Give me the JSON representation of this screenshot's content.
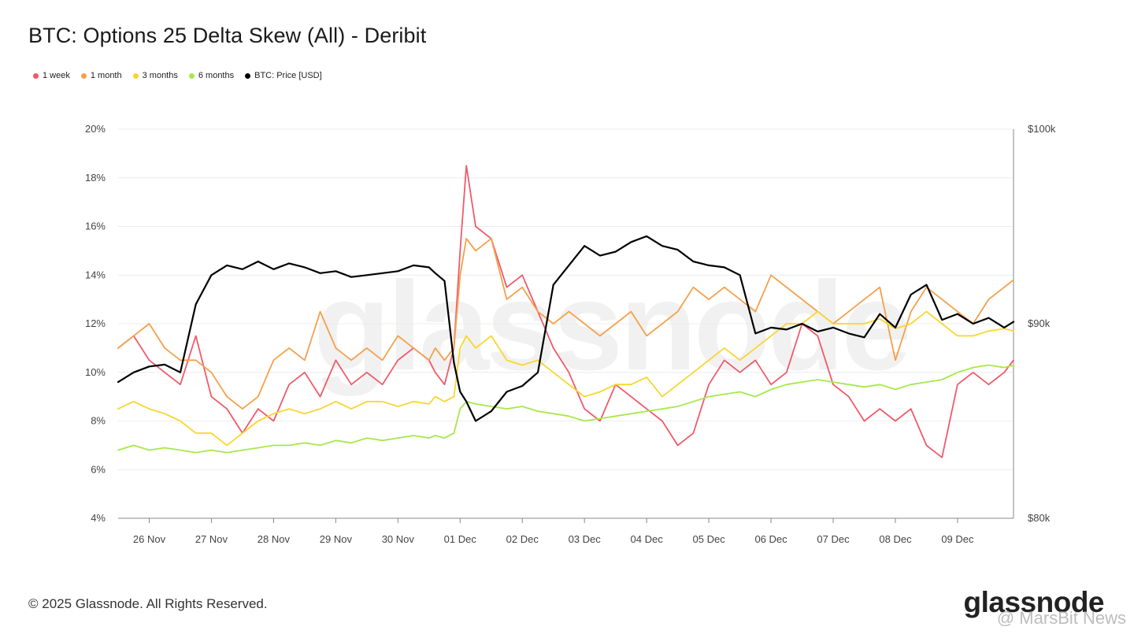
{
  "header": {
    "title": "BTC: Options 25 Delta Skew (All) - Deribit"
  },
  "legend": [
    {
      "label": "1 week",
      "color": "#f05a6a"
    },
    {
      "label": "1 month",
      "color": "#f5a04a"
    },
    {
      "label": "3 months",
      "color": "#f9d62e"
    },
    {
      "label": "6 months",
      "color": "#a6e84a"
    },
    {
      "label": "BTC: Price [USD]",
      "color": "#000000"
    }
  ],
  "footer": {
    "copyright": "© 2025 Glassnode. All Rights Reserved.",
    "brand": "glassnode",
    "watermark": "glassnode",
    "overlay": "@ MarsBit News"
  },
  "chart_data": {
    "type": "line",
    "title": "BTC: Options 25 Delta Skew (All) - Deribit",
    "x_ticks": [
      "26 Nov",
      "27 Nov",
      "28 Nov",
      "29 Nov",
      "30 Nov",
      "01 Dec",
      "02 Dec",
      "03 Dec",
      "04 Dec",
      "05 Dec",
      "06 Dec",
      "07 Dec",
      "08 Dec",
      "09 Dec"
    ],
    "x_range": [
      "25 Nov 12:00",
      "09 Dec 15:00"
    ],
    "y_left": {
      "ticks": [
        "4%",
        "6%",
        "8%",
        "10%",
        "12%",
        "14%",
        "16%",
        "18%",
        "20%"
      ],
      "min": 4,
      "max": 20
    },
    "y_right": {
      "ticks": [
        "$80k",
        "$90k",
        "$100k"
      ],
      "min": 80000,
      "max": 100000
    },
    "grid": true,
    "legend_position": "top-left",
    "x": [
      0,
      0.25,
      0.5,
      0.75,
      1,
      1.25,
      1.5,
      1.75,
      2,
      2.25,
      2.5,
      2.75,
      3,
      3.25,
      3.5,
      3.75,
      4,
      4.25,
      4.5,
      4.75,
      5,
      5.1,
      5.25,
      5.4,
      5.5,
      5.6,
      5.75,
      6,
      6.25,
      6.5,
      6.75,
      7,
      7.25,
      7.5,
      7.75,
      8,
      8.25,
      8.5,
      8.75,
      9,
      9.25,
      9.5,
      9.75,
      10,
      10.25,
      10.5,
      10.75,
      11,
      11.25,
      11.5,
      11.75,
      12,
      12.25,
      12.5,
      12.75,
      13,
      13.25,
      13.5,
      13.75,
      14,
      14.25,
      14.4
    ],
    "series": [
      {
        "name": "1 week",
        "color": "#f05a6a",
        "values": [
          11.0,
          11.5,
          10.5,
          10.0,
          9.5,
          11.5,
          9.0,
          8.5,
          7.5,
          8.5,
          8.0,
          9.5,
          10.0,
          9.0,
          10.5,
          9.5,
          10.0,
          9.5,
          10.5,
          11.0,
          10.5,
          10.0,
          9.5,
          11.0,
          15.0,
          18.5,
          16.0,
          15.5,
          13.5,
          14.0,
          12.5,
          11.0,
          10.0,
          8.5,
          8.0,
          9.5,
          9.0,
          8.5,
          8.0,
          7.0,
          7.5,
          9.5,
          10.5,
          10.0,
          10.5,
          9.5,
          10.0,
          12.0,
          11.5,
          9.5,
          9.0,
          8.0,
          8.5,
          8.0,
          8.5,
          7.0,
          6.5,
          9.5,
          10.0,
          9.5,
          10.0,
          10.5
        ]
      },
      {
        "name": "1 month",
        "color": "#f5a04a",
        "values": [
          11.0,
          11.5,
          12.0,
          11.0,
          10.5,
          10.5,
          10.0,
          9.0,
          8.5,
          9.0,
          10.5,
          11.0,
          10.5,
          12.5,
          11.0,
          10.5,
          11.0,
          10.5,
          11.5,
          11.0,
          10.5,
          11.0,
          10.5,
          11.0,
          14.0,
          15.5,
          15.0,
          15.5,
          13.0,
          13.5,
          12.5,
          12.0,
          12.5,
          12.0,
          11.5,
          12.0,
          12.5,
          11.5,
          12.0,
          12.5,
          13.5,
          13.0,
          13.5,
          13.0,
          12.5,
          14.0,
          13.5,
          13.0,
          12.5,
          12.0,
          12.5,
          13.0,
          13.5,
          10.5,
          12.5,
          13.5,
          13.0,
          12.5,
          12.0,
          13.0,
          13.5,
          13.8
        ]
      },
      {
        "name": "3 months",
        "color": "#f9d62e",
        "values": [
          8.5,
          8.8,
          8.5,
          8.3,
          8.0,
          7.5,
          7.5,
          7.0,
          7.5,
          8.0,
          8.3,
          8.5,
          8.3,
          8.5,
          8.8,
          8.5,
          8.8,
          8.8,
          8.6,
          8.8,
          8.7,
          9.0,
          8.8,
          9.0,
          11.0,
          11.5,
          11.0,
          11.5,
          10.5,
          10.3,
          10.5,
          10.0,
          9.5,
          9.0,
          9.2,
          9.5,
          9.5,
          9.8,
          9.0,
          9.5,
          10.0,
          10.5,
          11.0,
          10.5,
          11.0,
          11.5,
          12.0,
          12.0,
          12.5,
          12.0,
          12.0,
          12.0,
          12.2,
          11.8,
          12.0,
          12.5,
          12.0,
          11.5,
          11.5,
          11.7,
          11.8,
          11.7
        ]
      },
      {
        "name": "6 months",
        "color": "#a6e84a",
        "values": [
          6.8,
          7.0,
          6.8,
          6.9,
          6.8,
          6.7,
          6.8,
          6.7,
          6.8,
          6.9,
          7.0,
          7.0,
          7.1,
          7.0,
          7.2,
          7.1,
          7.3,
          7.2,
          7.3,
          7.4,
          7.3,
          7.4,
          7.3,
          7.5,
          8.5,
          8.8,
          8.7,
          8.6,
          8.5,
          8.6,
          8.4,
          8.3,
          8.2,
          8.0,
          8.1,
          8.2,
          8.3,
          8.4,
          8.5,
          8.6,
          8.8,
          9.0,
          9.1,
          9.2,
          9.0,
          9.3,
          9.5,
          9.6,
          9.7,
          9.6,
          9.5,
          9.4,
          9.5,
          9.3,
          9.5,
          9.6,
          9.7,
          10.0,
          10.2,
          10.3,
          10.2,
          10.3
        ]
      },
      {
        "name": "BTC: Price [USD]",
        "color": "#000000",
        "values": [
          87000,
          87500,
          87800,
          87900,
          87500,
          91000,
          92500,
          93000,
          92800,
          93200,
          92800,
          93100,
          92900,
          92600,
          92700,
          92400,
          92500,
          92600,
          92700,
          93000,
          92900,
          92600,
          92200,
          88000,
          86500,
          86000,
          85000,
          85500,
          86500,
          86800,
          87500,
          92000,
          93000,
          94000,
          93500,
          93700,
          94200,
          94500,
          94000,
          93800,
          93200,
          93000,
          92900,
          92500,
          89500,
          89800,
          89700,
          90000,
          89600,
          89800,
          89500,
          89300,
          90500,
          89800,
          91500,
          92000,
          90200,
          90500,
          90000,
          90300,
          89800,
          90100
        ]
      }
    ]
  }
}
